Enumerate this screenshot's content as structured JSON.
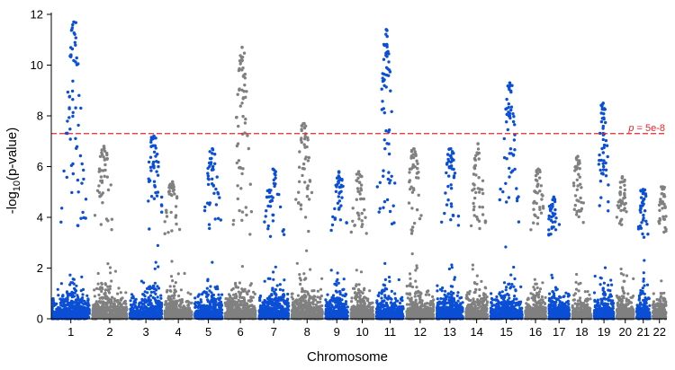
{
  "chart_data": {
    "type": "scatter",
    "subtype": "manhattan",
    "xlabel": "Chromosome",
    "ylabel_base": "-log",
    "ylabel_sub": "10",
    "ylabel_rest": "(p-value)",
    "ylim": [
      0,
      12
    ],
    "yticks": [
      0,
      2,
      4,
      6,
      8,
      10,
      12
    ],
    "threshold": {
      "value": 7.3,
      "label_italic": "p",
      "label_rest": " = 5e-8",
      "color": "#e8252d",
      "style": "dashed"
    },
    "colors": {
      "odd": "#0b4fd6",
      "even": "#808080"
    },
    "chromosomes": [
      {
        "label": "1",
        "max": 11.7
      },
      {
        "label": "2",
        "max": 6.8
      },
      {
        "label": "3",
        "max": 7.2
      },
      {
        "label": "4",
        "max": 5.4
      },
      {
        "label": "5",
        "max": 6.7
      },
      {
        "label": "6",
        "max": 10.7
      },
      {
        "label": "7",
        "max": 5.9
      },
      {
        "label": "8",
        "max": 7.7
      },
      {
        "label": "9",
        "max": 5.8
      },
      {
        "label": "10",
        "max": 5.8
      },
      {
        "label": "11",
        "max": 11.4
      },
      {
        "label": "12",
        "max": 6.7
      },
      {
        "label": "13",
        "max": 6.7
      },
      {
        "label": "14",
        "max": 6.9
      },
      {
        "label": "15",
        "max": 9.3
      },
      {
        "label": "16",
        "max": 5.9
      },
      {
        "label": "17",
        "max": 4.8
      },
      {
        "label": "18",
        "max": 6.4
      },
      {
        "label": "19",
        "max": 8.5
      },
      {
        "label": "20",
        "max": 5.6
      },
      {
        "label": "21",
        "max": 5.1
      },
      {
        "label": "22",
        "max": 5.2
      }
    ],
    "grid": false,
    "legend": "none"
  }
}
